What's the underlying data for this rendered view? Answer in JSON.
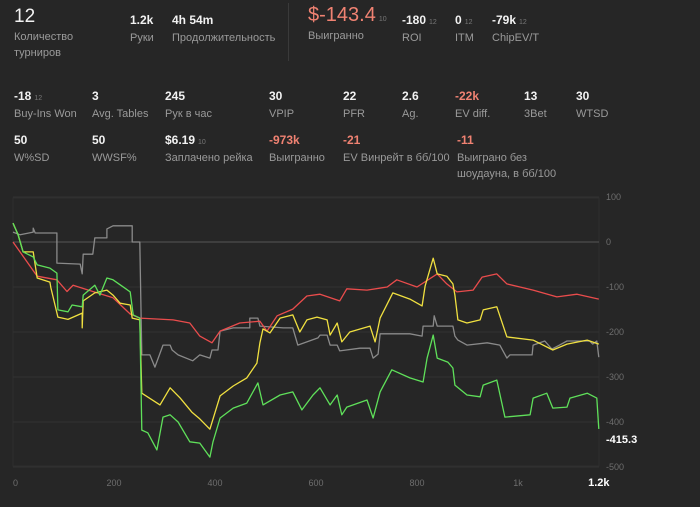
{
  "summary": {
    "tournaments": {
      "value": "12",
      "label": "Количество турниров"
    },
    "hands": {
      "value": "1.2k",
      "label": "Руки"
    },
    "duration": {
      "value": "4h 54m",
      "label": "Продолжительность"
    },
    "won": {
      "value": "$-143.4",
      "sub": "10",
      "label": "Выигранно"
    },
    "roi": {
      "value": "-180",
      "sub": "12",
      "label": "ROI"
    },
    "itm": {
      "value": "0",
      "sub": "12",
      "label": "ITM"
    },
    "chipev": {
      "value": "-79k",
      "sub": "12",
      "label": "ChipEV/T"
    }
  },
  "stats_row1": [
    {
      "value": "-18",
      "sub": "12",
      "label": "Buy-Ins Won",
      "negative": false
    },
    {
      "value": "3",
      "label": "Avg. Tables"
    },
    {
      "value": "245",
      "label": "Рук в час"
    },
    {
      "value": "30",
      "label": "VPIP"
    },
    {
      "value": "22",
      "label": "PFR"
    },
    {
      "value": "2.6",
      "label": "Ag."
    },
    {
      "value": "-22k",
      "label": "EV diff.",
      "negative": true
    },
    {
      "value": "13",
      "label": "3Bet"
    },
    {
      "value": "30",
      "label": "WTSD"
    }
  ],
  "stats_row2": [
    {
      "value": "50",
      "label": "W%SD"
    },
    {
      "value": "50",
      "label": "WWSF%"
    },
    {
      "value": "$6.19",
      "sub": "10",
      "label": "Заплачено рейка"
    },
    {
      "value": "-973k",
      "label": "Выигранно",
      "negative": true
    },
    {
      "value": "-21",
      "label": "EV Винрейт в бб/100",
      "negative": true
    },
    {
      "value": "-11",
      "label": "Выиграно без шоудауна, в бб/100",
      "negative": true
    }
  ],
  "chart_data": {
    "type": "line",
    "xlabel": "",
    "ylabel": "",
    "xlim": [
      0,
      1160
    ],
    "ylim": [
      -500,
      100
    ],
    "x_ticks": [
      "0",
      "200",
      "400",
      "600",
      "800",
      "1k",
      "1.2k"
    ],
    "x_tick_values": [
      0,
      200,
      400,
      600,
      800,
      1000,
      1160
    ],
    "y_ticks": [
      100,
      0,
      -100,
      -200,
      -300,
      -400,
      -500
    ],
    "end_label": "-415.3",
    "colors": {
      "green": "#5fe05a",
      "yellow": "#f0e040",
      "red": "#ea4c4c",
      "gray": "#8a8a8a",
      "grid": "#333333",
      "zero": "#555555"
    },
    "series": [
      {
        "name": "gray",
        "points": [
          [
            0,
            22
          ],
          [
            14,
            16
          ],
          [
            40,
            22
          ],
          [
            40,
            31
          ],
          [
            44,
            20
          ],
          [
            87,
            20
          ],
          [
            87,
            -47
          ],
          [
            133,
            -49
          ],
          [
            137,
            -71
          ],
          [
            139,
            -27
          ],
          [
            158,
            -27
          ],
          [
            162,
            9
          ],
          [
            186,
            9
          ],
          [
            186,
            29
          ],
          [
            198,
            36
          ],
          [
            236,
            36
          ],
          [
            236,
            0
          ],
          [
            251,
            0
          ],
          [
            255,
            -251
          ],
          [
            271,
            -251
          ],
          [
            281,
            -278
          ],
          [
            297,
            -229
          ],
          [
            311,
            -229
          ],
          [
            315,
            -240
          ],
          [
            327,
            -251
          ],
          [
            356,
            -264
          ],
          [
            370,
            -251
          ],
          [
            390,
            -258
          ],
          [
            394,
            -240
          ],
          [
            406,
            -240
          ],
          [
            410,
            -198
          ],
          [
            436,
            -191
          ],
          [
            469,
            -191
          ],
          [
            469,
            -169
          ],
          [
            485,
            -169
          ],
          [
            489,
            -187
          ],
          [
            535,
            -191
          ],
          [
            554,
            -191
          ],
          [
            564,
            -229
          ],
          [
            604,
            -213
          ],
          [
            608,
            -207
          ],
          [
            622,
            -207
          ],
          [
            628,
            -229
          ],
          [
            642,
            -229
          ],
          [
            647,
            -242
          ],
          [
            687,
            -236
          ],
          [
            707,
            -236
          ],
          [
            713,
            -258
          ],
          [
            723,
            -249
          ],
          [
            727,
            -204
          ],
          [
            786,
            -204
          ],
          [
            810,
            -209
          ],
          [
            812,
            -187
          ],
          [
            832,
            -187
          ],
          [
            834,
            -164
          ],
          [
            840,
            -187
          ],
          [
            871,
            -187
          ],
          [
            875,
            -209
          ],
          [
            881,
            -218
          ],
          [
            899,
            -229
          ],
          [
            939,
            -224
          ],
          [
            964,
            -229
          ],
          [
            978,
            -258
          ],
          [
            984,
            -251
          ],
          [
            1028,
            -251
          ],
          [
            1030,
            -229
          ],
          [
            1053,
            -220
          ],
          [
            1067,
            -238
          ],
          [
            1079,
            -231
          ],
          [
            1097,
            -220
          ],
          [
            1142,
            -220
          ],
          [
            1148,
            -227
          ],
          [
            1156,
            -220
          ],
          [
            1160,
            -256
          ]
        ]
      },
      {
        "name": "red",
        "points": [
          [
            0,
            0
          ],
          [
            48,
            -76
          ],
          [
            87,
            -84
          ],
          [
            107,
            -110
          ],
          [
            119,
            -96
          ],
          [
            158,
            -110
          ],
          [
            198,
            -124
          ],
          [
            232,
            -160
          ],
          [
            251,
            -169
          ],
          [
            317,
            -173
          ],
          [
            350,
            -180
          ],
          [
            370,
            -209
          ],
          [
            394,
            -224
          ],
          [
            410,
            -198
          ],
          [
            449,
            -180
          ],
          [
            489,
            -176
          ],
          [
            503,
            -198
          ],
          [
            523,
            -164
          ],
          [
            554,
            -149
          ],
          [
            582,
            -120
          ],
          [
            608,
            -116
          ],
          [
            647,
            -131
          ],
          [
            661,
            -104
          ],
          [
            701,
            -107
          ],
          [
            741,
            -100
          ],
          [
            760,
            -84
          ],
          [
            800,
            -100
          ],
          [
            840,
            -71
          ],
          [
            859,
            -93
          ],
          [
            879,
            -111
          ],
          [
            911,
            -107
          ],
          [
            929,
            -78
          ],
          [
            958,
            -71
          ],
          [
            978,
            -93
          ],
          [
            1030,
            -107
          ],
          [
            1077,
            -122
          ],
          [
            1117,
            -116
          ],
          [
            1160,
            -127
          ]
        ]
      },
      {
        "name": "yellow",
        "points": [
          [
            0,
            42
          ],
          [
            10,
            16
          ],
          [
            20,
            -22
          ],
          [
            40,
            -22
          ],
          [
            48,
            -80
          ],
          [
            73,
            -89
          ],
          [
            75,
            -102
          ],
          [
            89,
            -167
          ],
          [
            109,
            -172
          ],
          [
            137,
            -158
          ],
          [
            137,
            -191
          ],
          [
            139,
            -131
          ],
          [
            162,
            -113
          ],
          [
            186,
            -107
          ],
          [
            198,
            -118
          ],
          [
            212,
            -136
          ],
          [
            232,
            -140
          ],
          [
            236,
            -169
          ],
          [
            251,
            -173
          ],
          [
            255,
            -336
          ],
          [
            291,
            -362
          ],
          [
            311,
            -324
          ],
          [
            331,
            -347
          ],
          [
            354,
            -378
          ],
          [
            370,
            -393
          ],
          [
            390,
            -416
          ],
          [
            410,
            -342
          ],
          [
            436,
            -320
          ],
          [
            463,
            -302
          ],
          [
            483,
            -269
          ],
          [
            489,
            -224
          ],
          [
            495,
            -193
          ],
          [
            509,
            -202
          ],
          [
            529,
            -169
          ],
          [
            554,
            -162
          ],
          [
            568,
            -200
          ],
          [
            582,
            -173
          ],
          [
            602,
            -167
          ],
          [
            622,
            -173
          ],
          [
            628,
            -207
          ],
          [
            642,
            -180
          ],
          [
            651,
            -222
          ],
          [
            667,
            -200
          ],
          [
            707,
            -187
          ],
          [
            717,
            -222
          ],
          [
            727,
            -169
          ],
          [
            752,
            -113
          ],
          [
            786,
            -127
          ],
          [
            810,
            -142
          ],
          [
            816,
            -98
          ],
          [
            832,
            -36
          ],
          [
            840,
            -71
          ],
          [
            859,
            -76
          ],
          [
            871,
            -93
          ],
          [
            875,
            -118
          ],
          [
            881,
            -173
          ],
          [
            899,
            -180
          ],
          [
            925,
            -173
          ],
          [
            931,
            -151
          ],
          [
            958,
            -144
          ],
          [
            978,
            -211
          ],
          [
            1030,
            -218
          ],
          [
            1069,
            -240
          ],
          [
            1097,
            -227
          ],
          [
            1137,
            -218
          ],
          [
            1160,
            -227
          ]
        ]
      },
      {
        "name": "green",
        "points": [
          [
            0,
            42
          ],
          [
            10,
            16
          ],
          [
            20,
            -22
          ],
          [
            40,
            -33
          ],
          [
            48,
            -51
          ],
          [
            73,
            -58
          ],
          [
            87,
            -69
          ],
          [
            89,
            -151
          ],
          [
            109,
            -155
          ],
          [
            117,
            -140
          ],
          [
            137,
            -144
          ],
          [
            139,
            -118
          ],
          [
            162,
            -96
          ],
          [
            172,
            -118
          ],
          [
            186,
            -80
          ],
          [
            198,
            -84
          ],
          [
            232,
            -111
          ],
          [
            238,
            -162
          ],
          [
            251,
            -169
          ],
          [
            255,
            -418
          ],
          [
            267,
            -424
          ],
          [
            285,
            -462
          ],
          [
            297,
            -389
          ],
          [
            311,
            -384
          ],
          [
            327,
            -400
          ],
          [
            350,
            -444
          ],
          [
            370,
            -447
          ],
          [
            390,
            -478
          ],
          [
            396,
            -444
          ],
          [
            410,
            -391
          ],
          [
            436,
            -369
          ],
          [
            463,
            -358
          ],
          [
            485,
            -313
          ],
          [
            495,
            -362
          ],
          [
            529,
            -340
          ],
          [
            554,
            -333
          ],
          [
            572,
            -373
          ],
          [
            594,
            -340
          ],
          [
            608,
            -324
          ],
          [
            628,
            -362
          ],
          [
            642,
            -340
          ],
          [
            651,
            -384
          ],
          [
            661,
            -367
          ],
          [
            701,
            -351
          ],
          [
            713,
            -391
          ],
          [
            727,
            -333
          ],
          [
            750,
            -284
          ],
          [
            786,
            -302
          ],
          [
            812,
            -311
          ],
          [
            820,
            -258
          ],
          [
            832,
            -207
          ],
          [
            840,
            -258
          ],
          [
            861,
            -267
          ],
          [
            871,
            -280
          ],
          [
            875,
            -318
          ],
          [
            899,
            -340
          ],
          [
            925,
            -344
          ],
          [
            931,
            -318
          ],
          [
            958,
            -307
          ],
          [
            974,
            -389
          ],
          [
            1024,
            -384
          ],
          [
            1030,
            -347
          ],
          [
            1057,
            -336
          ],
          [
            1069,
            -369
          ],
          [
            1097,
            -367
          ],
          [
            1103,
            -347
          ],
          [
            1137,
            -336
          ],
          [
            1156,
            -347
          ],
          [
            1160,
            -415.3
          ]
        ]
      }
    ]
  }
}
